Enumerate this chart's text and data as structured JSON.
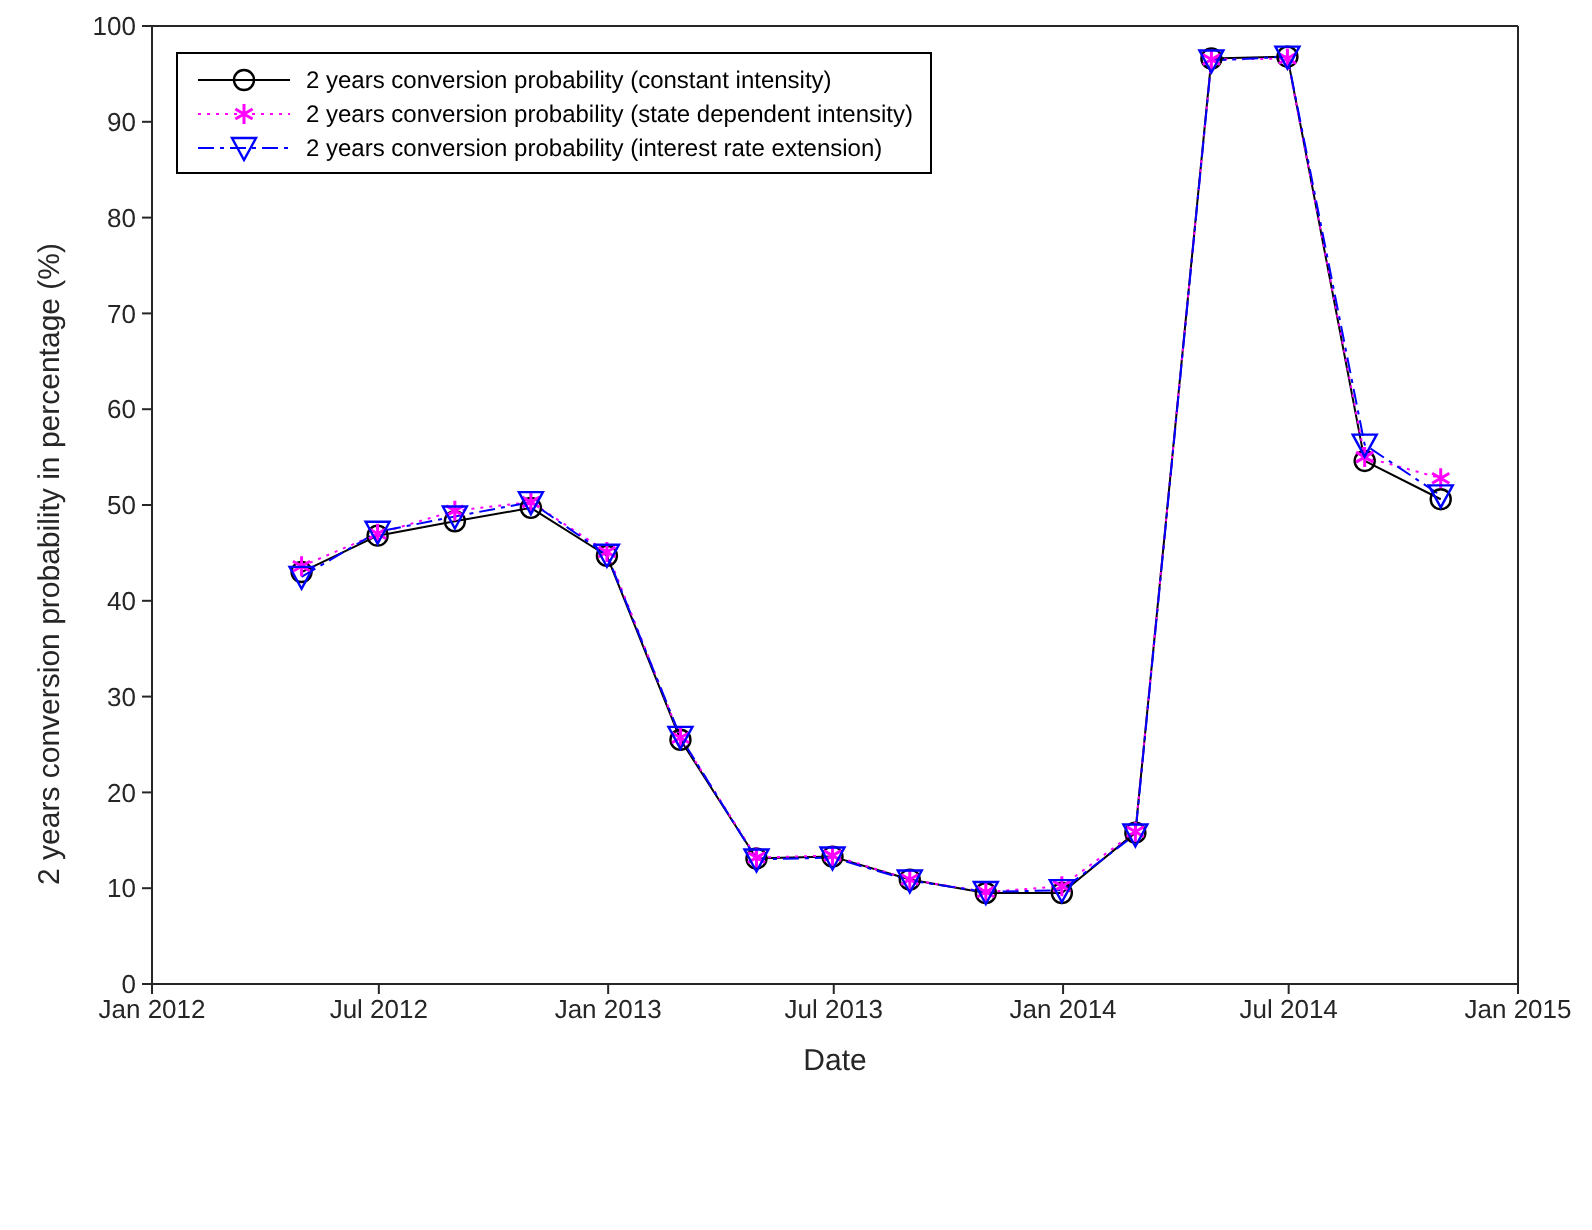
{
  "chart_data": {
    "type": "line",
    "xlabel": "Date",
    "ylabel": "2 years conversion probability in percentage (%)",
    "x": [
      "2012-04-30",
      "2012-06-30",
      "2012-08-31",
      "2012-10-31",
      "2012-12-31",
      "2013-02-28",
      "2013-04-30",
      "2013-06-30",
      "2013-08-31",
      "2013-10-31",
      "2013-12-31",
      "2014-02-28",
      "2014-04-30",
      "2014-06-30",
      "2014-08-31",
      "2014-10-31"
    ],
    "series": [
      {
        "name": "2 years conversion probability (constant intensity)",
        "color": "#000000",
        "marker": "circle",
        "line_style": "solid",
        "values": [
          43.0,
          46.8,
          48.3,
          49.7,
          44.7,
          25.5,
          13.1,
          13.3,
          10.9,
          9.5,
          9.5,
          15.8,
          96.6,
          96.8,
          54.6,
          50.6
        ]
      },
      {
        "name": "2 years conversion probability (state dependent intensity)",
        "color": "#ff00ff",
        "marker": "cross",
        "line_style": "dotted",
        "values": [
          43.6,
          47.0,
          49.4,
          50.3,
          45.1,
          25.7,
          13.2,
          13.4,
          10.9,
          9.6,
          10.2,
          15.9,
          96.5,
          96.6,
          55.0,
          52.8
        ]
      },
      {
        "name": "2 years conversion probability (interest rate extension)",
        "color": "#0000ff",
        "marker": "triangle",
        "line_style": "dashed",
        "values": [
          42.5,
          47.2,
          48.8,
          50.3,
          44.8,
          25.8,
          13.0,
          13.2,
          10.8,
          9.6,
          9.8,
          15.6,
          96.4,
          96.8,
          56.3,
          51.0
        ]
      }
    ],
    "xlim": [
      "2012-01-01",
      "2015-01-01"
    ],
    "xticks": [
      {
        "value": "2012-01-01",
        "label": "Jan 2012"
      },
      {
        "value": "2012-07-01",
        "label": "Jul 2012"
      },
      {
        "value": "2013-01-01",
        "label": "Jan 2013"
      },
      {
        "value": "2013-07-01",
        "label": "Jul 2013"
      },
      {
        "value": "2014-01-01",
        "label": "Jan 2014"
      },
      {
        "value": "2014-07-01",
        "label": "Jul 2014"
      },
      {
        "value": "2015-01-01",
        "label": "Jan 2015"
      }
    ],
    "ylim": [
      0,
      100
    ],
    "yticks": [
      0,
      10,
      20,
      30,
      40,
      50,
      60,
      70,
      80,
      90,
      100
    ],
    "grid": false,
    "legend": "top left"
  }
}
